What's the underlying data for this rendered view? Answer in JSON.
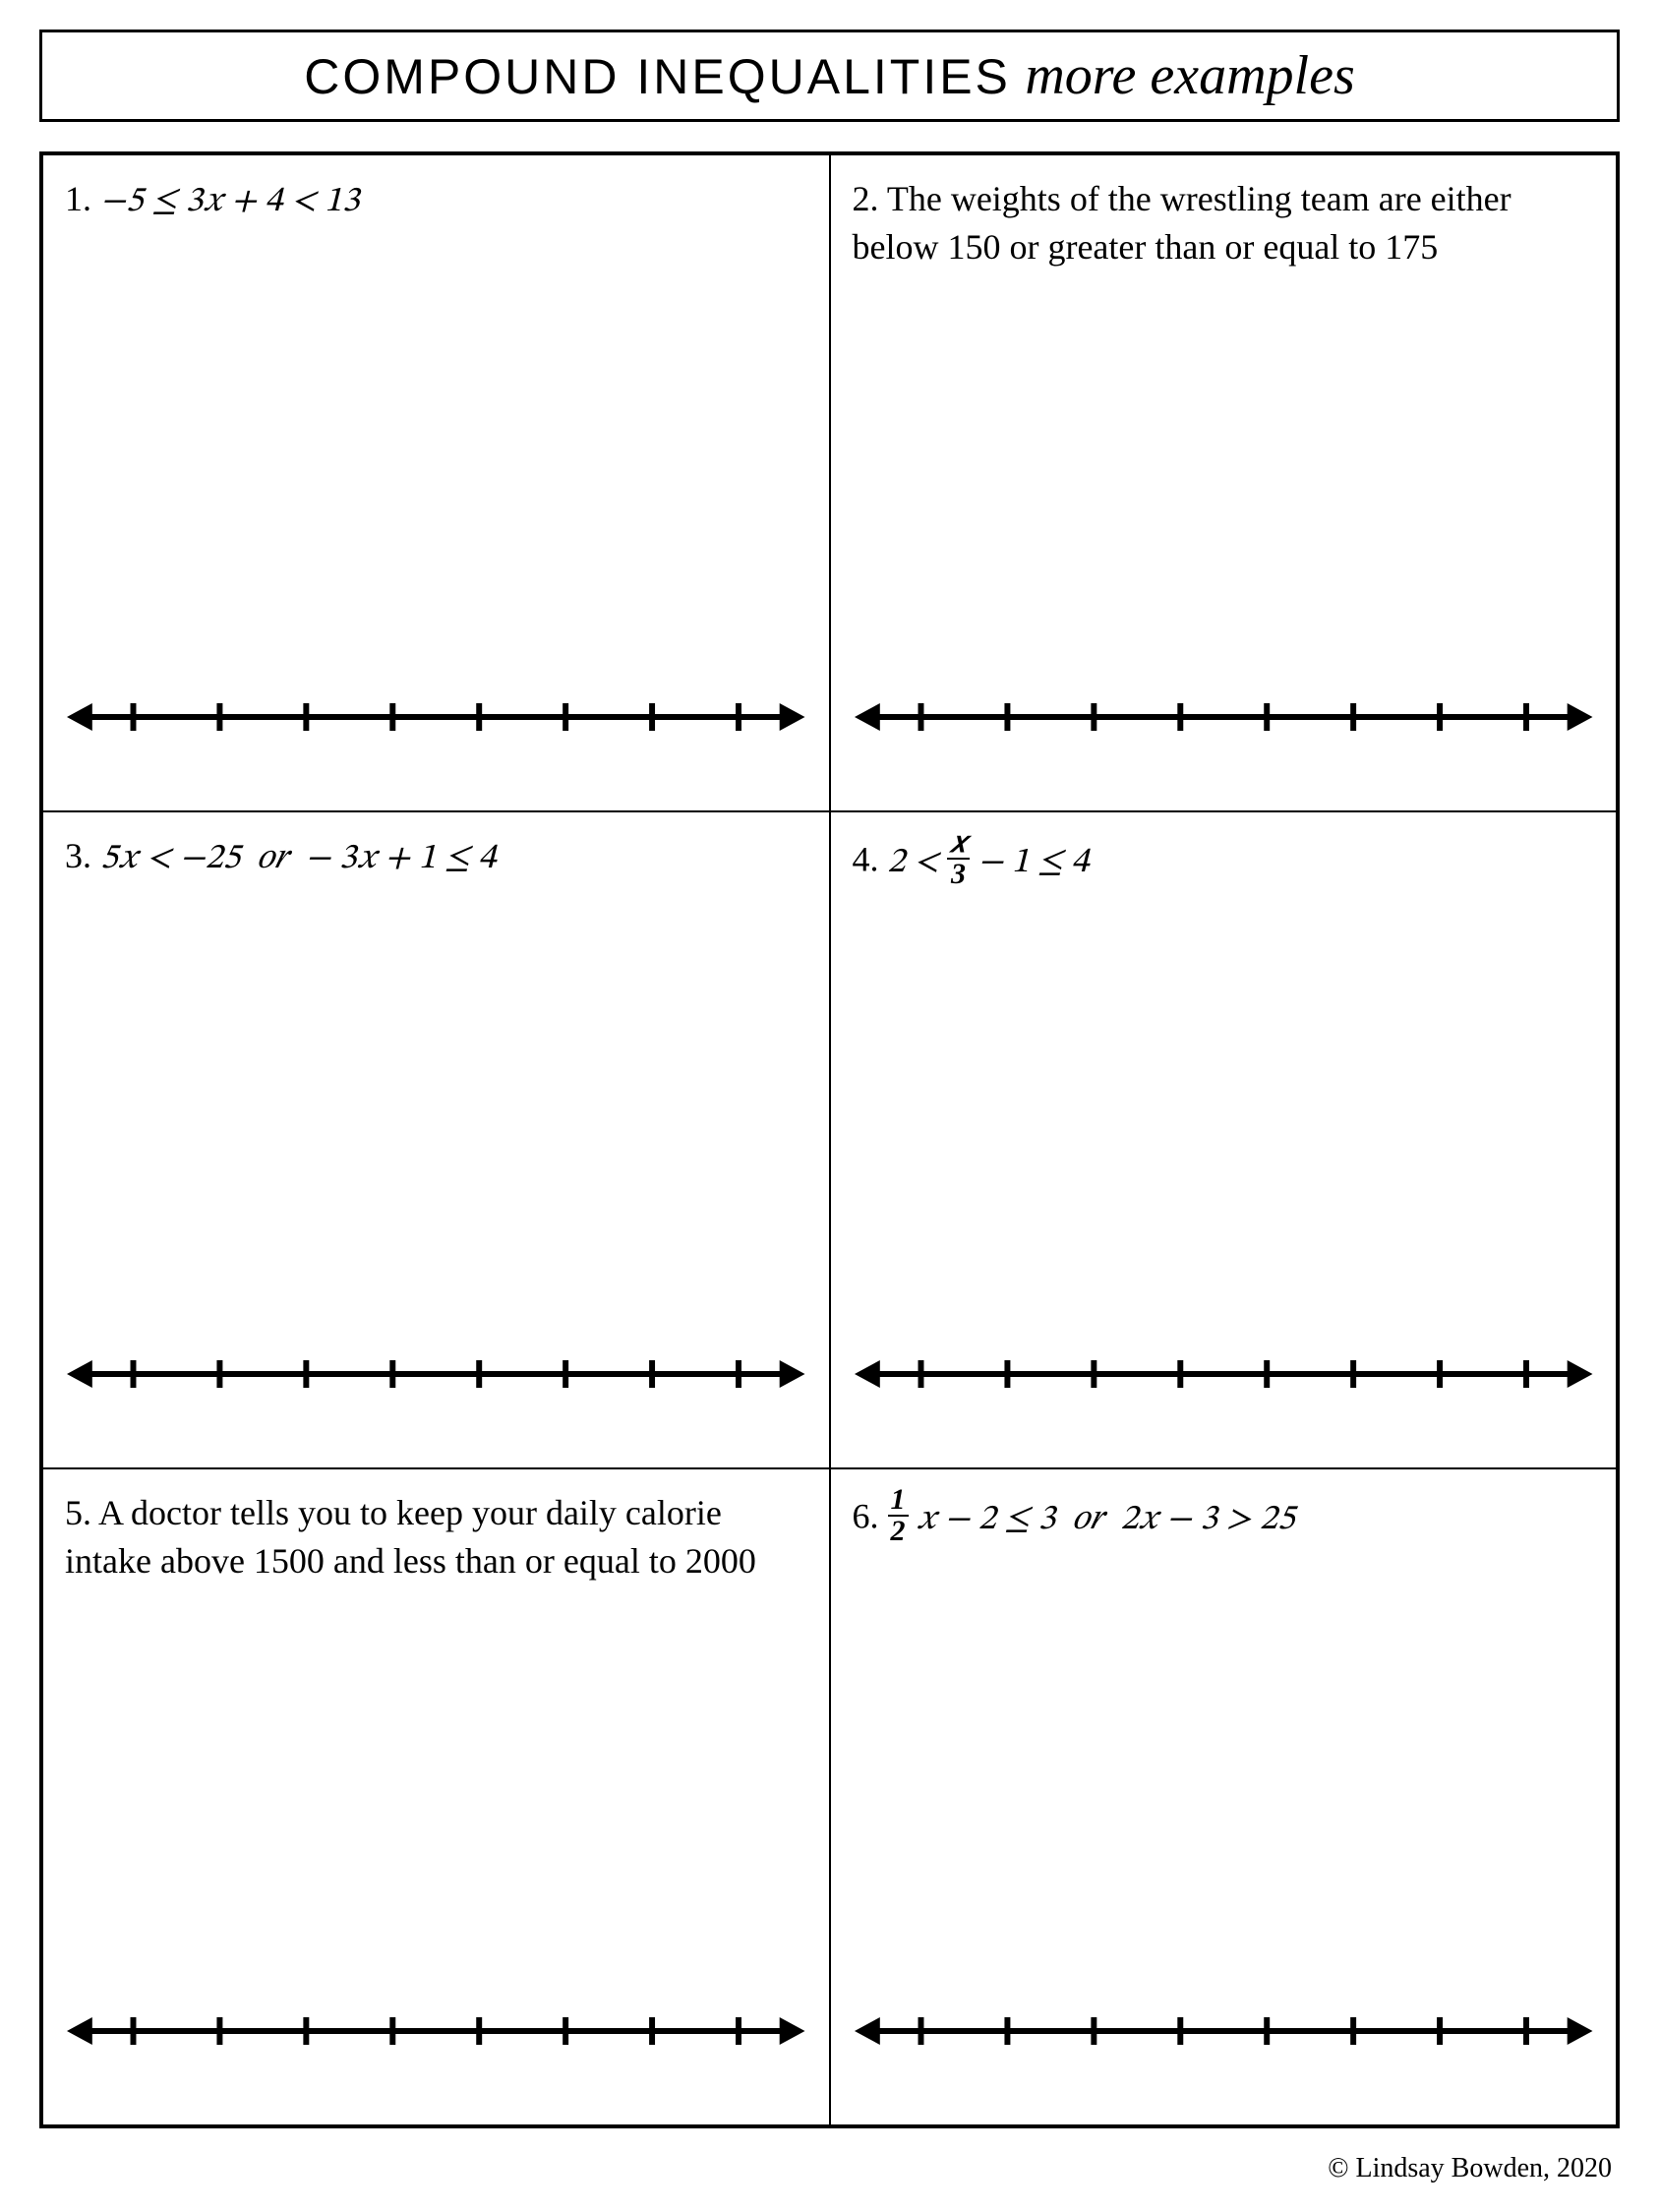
{
  "title": {
    "main": "COMPOUND INEQUALITIES",
    "script": "more examples"
  },
  "problems": [
    {
      "number": "1.",
      "content_html": "<span class='math'>−5 ≤ 3𝑥 + 4 &lt; 13</span>"
    },
    {
      "number": "2.",
      "content_html": "The weights of the wrestling team are either below 150 or greater than or equal to 175"
    },
    {
      "number": "3.",
      "content_html": "<span class='math'>5𝑥 &lt; −25 &nbsp;𝑜𝑟&nbsp; − 3𝑥 + 1 ≤ 4</span>"
    },
    {
      "number": "4.",
      "content_html": "<span class='math'>2 &lt; <span class='frac'><span class='num'>𝑥</span><span class='den'>3</span></span> − 1 ≤ 4</span>"
    },
    {
      "number": "5.",
      "content_html": "A doctor tells you to keep your daily calorie intake above 1500 and less than or equal to 2000"
    },
    {
      "number": "6.",
      "content_html": "<span class='math'><span class='frac'><span class='num'>1</span><span class='den'>2</span></span> 𝑥 − 2 ≤ 3 &nbsp;𝑜𝑟&nbsp; 2𝑥 − 3 &gt; 25</span>"
    }
  ],
  "numberline": {
    "tick_count": 8,
    "stroke_color": "#000000",
    "stroke_width": 6,
    "tick_height": 28,
    "arrow_size": 18
  },
  "footer": "© Lindsay Bowden, 2020"
}
